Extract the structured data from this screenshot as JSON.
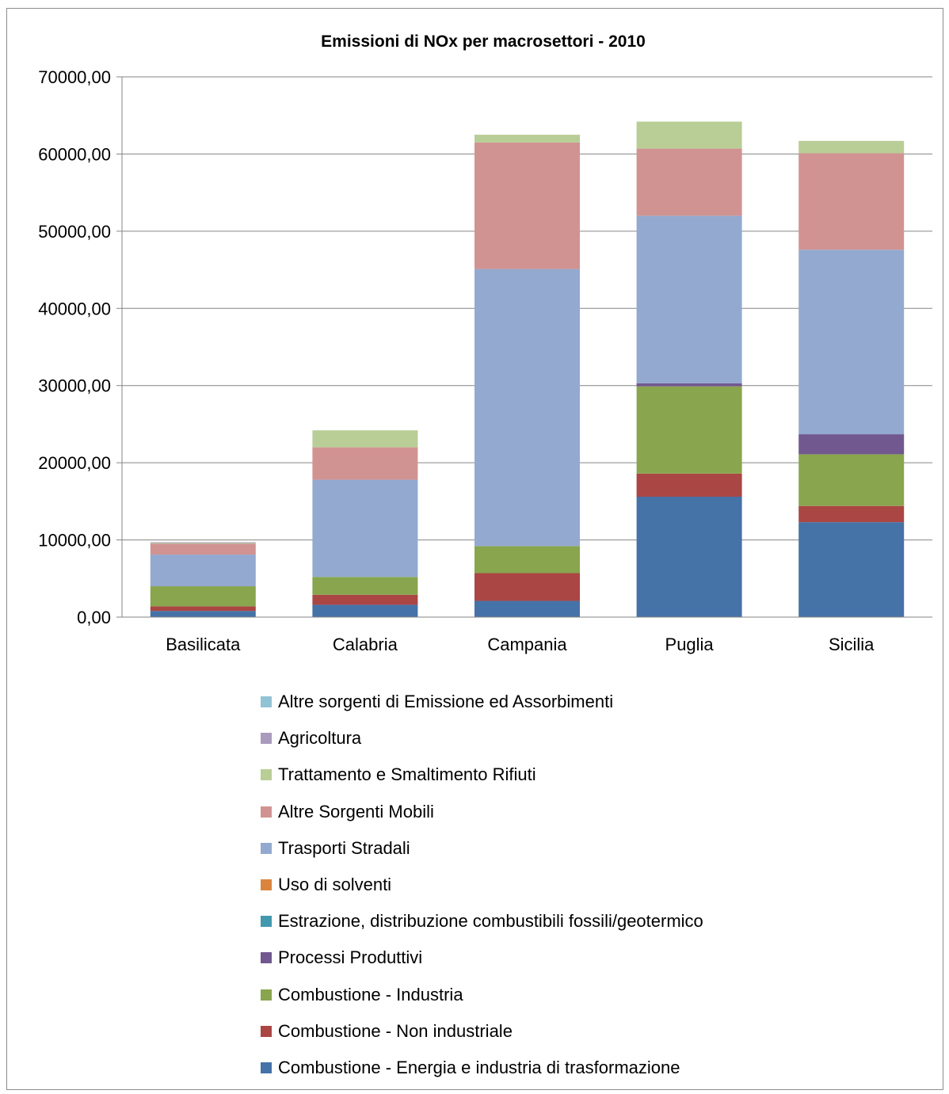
{
  "chart_data": {
    "type": "bar",
    "stacked": true,
    "title": "Emissioni di NOx per macrosettori - 2010",
    "xlabel": "",
    "ylabel": "",
    "ylim": [
      0,
      70000
    ],
    "yticks": [
      0,
      10000,
      20000,
      30000,
      40000,
      50000,
      60000,
      70000
    ],
    "ytick_labels": [
      "0,00",
      "10000,00",
      "20000,00",
      "30000,00",
      "40000,00",
      "50000,00",
      "60000,00",
      "70000,00"
    ],
    "grid": true,
    "legend_position": "bottom",
    "categories": [
      "Basilicata",
      "Calabria",
      "Campania",
      "Puglia",
      "Sicilia"
    ],
    "series": [
      {
        "name": "Combustione - Energia e industria di trasformazione",
        "color": "#4572A7",
        "values": [
          800,
          1600,
          2100,
          15600,
          12300
        ]
      },
      {
        "name": "Combustione - Non industriale",
        "color": "#AA4643",
        "values": [
          600,
          1300,
          3600,
          3000,
          2100
        ]
      },
      {
        "name": "Combustione - Industria",
        "color": "#89A54E",
        "values": [
          2600,
          2300,
          3500,
          11300,
          6700
        ]
      },
      {
        "name": "Processi Produttivi",
        "color": "#71588F",
        "values": [
          0,
          0,
          0,
          400,
          2600
        ]
      },
      {
        "name": "Estrazione, distribuzione combustibili fossili/geotermico",
        "color": "#4198AF",
        "values": [
          0,
          0,
          0,
          0,
          0
        ]
      },
      {
        "name": "Uso di solventi",
        "color": "#DB843D",
        "values": [
          0,
          0,
          0,
          0,
          0
        ]
      },
      {
        "name": "Trasporti Stradali",
        "color": "#93A9CF",
        "values": [
          4100,
          12600,
          35900,
          21700,
          23900
        ]
      },
      {
        "name": "Altre Sorgenti Mobili",
        "color": "#D19392",
        "values": [
          1400,
          4200,
          16400,
          8700,
          12500
        ]
      },
      {
        "name": "Trattamento e Smaltimento Rifiuti",
        "color": "#B9CD96",
        "values": [
          100,
          2200,
          1000,
          3500,
          1600
        ]
      },
      {
        "name": "Agricoltura",
        "color": "#A99BBD",
        "values": [
          100,
          0,
          0,
          0,
          0
        ]
      },
      {
        "name": "Altre sorgenti di Emissione ed Assorbimenti",
        "color": "#91C3D5",
        "values": [
          0,
          0,
          0,
          0,
          0
        ]
      }
    ]
  }
}
